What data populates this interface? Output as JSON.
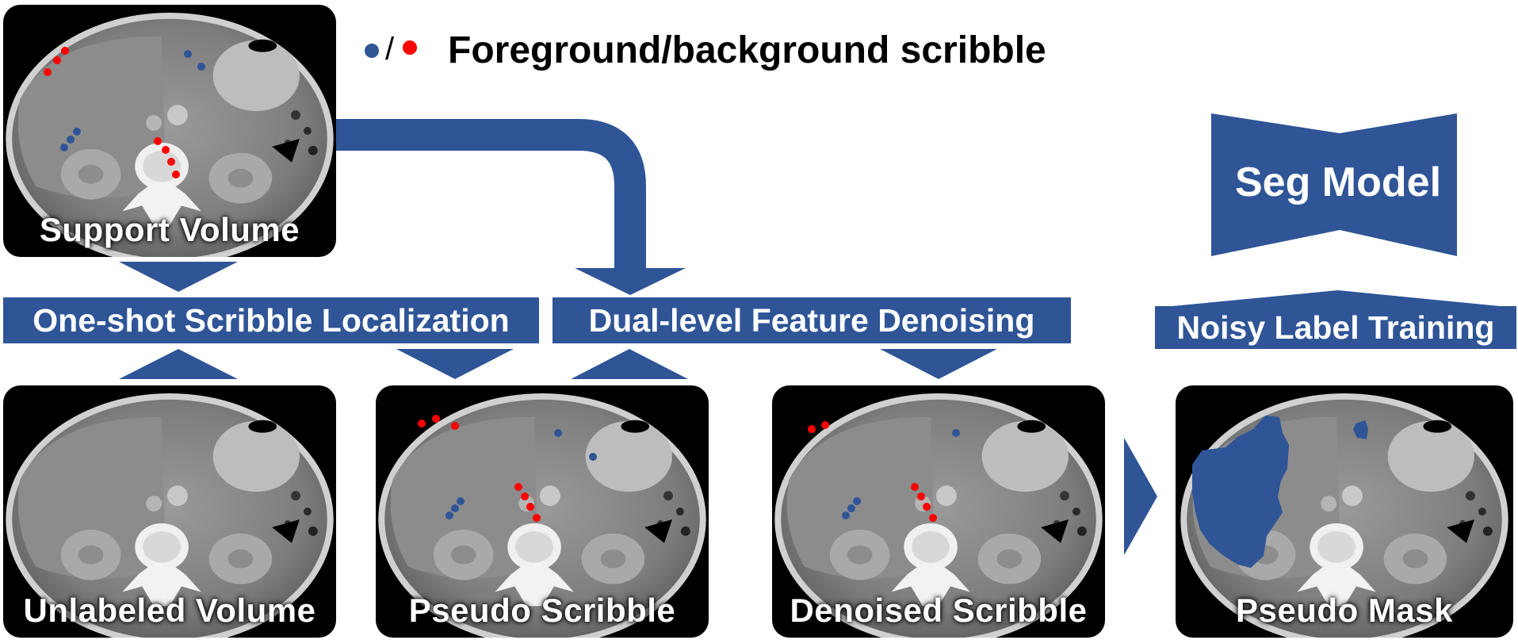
{
  "legend": {
    "separator": "/",
    "label": "Foreground/background scribble",
    "foreground_color": "#2f5597",
    "background_color": "#ff0000"
  },
  "colors": {
    "accent": "#2f5597",
    "scribble_bg": "#ff0000",
    "panel": "#000000"
  },
  "panels": {
    "support": {
      "label": "Support Volume"
    },
    "unlabeled": {
      "label": "Unlabeled Volume"
    },
    "pseudo_scribble": {
      "label": "Pseudo Scribble"
    },
    "denoised": {
      "label": "Denoised Scribble"
    },
    "pseudo_mask": {
      "label": "Pseudo Mask"
    }
  },
  "steps": {
    "localization": "One-shot Scribble Localization",
    "denoising": "Dual-level Feature Denoising",
    "training": "Noisy Label Training"
  },
  "model": {
    "label": "Seg Model"
  }
}
